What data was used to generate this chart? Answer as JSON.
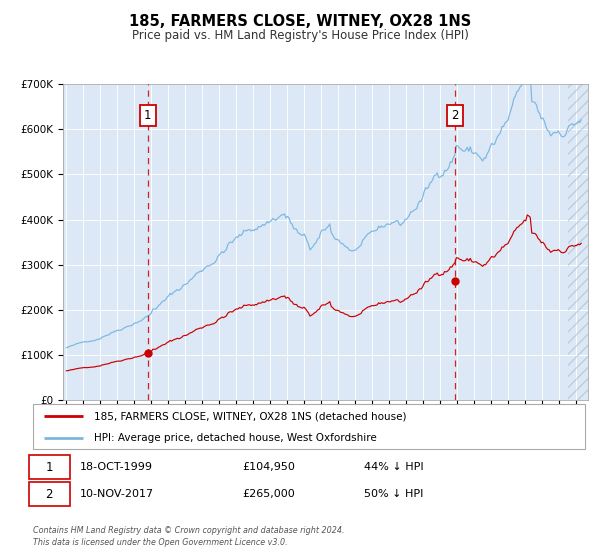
{
  "title": "185, FARMERS CLOSE, WITNEY, OX28 1NS",
  "subtitle": "Price paid vs. HM Land Registry's House Price Index (HPI)",
  "legend_line1": "185, FARMERS CLOSE, WITNEY, OX28 1NS (detached house)",
  "legend_line2": "HPI: Average price, detached house, West Oxfordshire",
  "annotation1_date": "18-OCT-1999",
  "annotation1_price": "£104,950",
  "annotation1_hpi": "44% ↓ HPI",
  "annotation2_date": "10-NOV-2017",
  "annotation2_price": "£265,000",
  "annotation2_hpi": "50% ↓ HPI",
  "footer": "Contains HM Land Registry data © Crown copyright and database right 2024.\nThis data is licensed under the Open Government Licence v3.0.",
  "hpi_color": "#7ab8e0",
  "price_color": "#cc0000",
  "vline_color": "#cc0000",
  "plot_bg": "#dce8f5",
  "ylim": [
    0,
    700000
  ],
  "yticks": [
    0,
    100000,
    200000,
    300000,
    400000,
    500000,
    600000,
    700000
  ],
  "ytick_labels": [
    "£0",
    "£100K",
    "£200K",
    "£300K",
    "£400K",
    "£500K",
    "£600K",
    "£700K"
  ],
  "sale1_year": 1999.79,
  "sale1_price": 104950,
  "sale2_year": 2017.86,
  "sale2_price": 265000,
  "xmin": 1994.8,
  "xmax": 2025.7
}
